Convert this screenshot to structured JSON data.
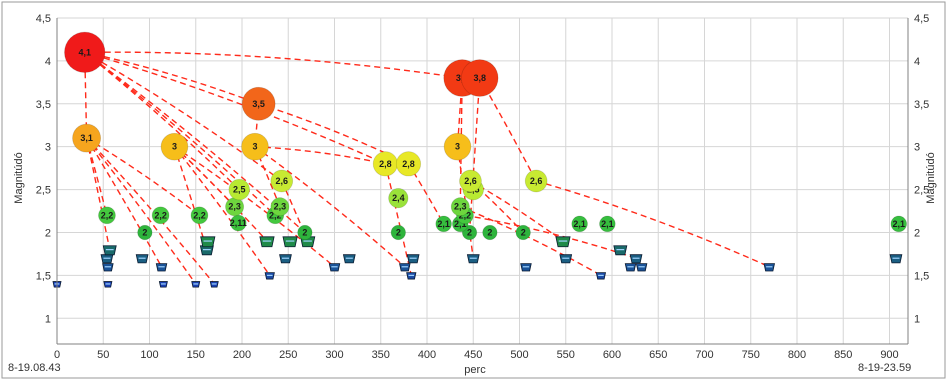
{
  "chart_data": {
    "type": "scatter",
    "title": "",
    "xlabel": "perc",
    "ylabel": "Magnitúdó",
    "ylabel_right": "Magnitúdó",
    "xlim": [
      0,
      920
    ],
    "ylim": [
      0.7,
      4.5
    ],
    "x_ticks": [
      0,
      50,
      100,
      150,
      200,
      250,
      300,
      350,
      400,
      450,
      500,
      550,
      600,
      650,
      700,
      750,
      800,
      850,
      900
    ],
    "y_ticks": [
      1,
      1.5,
      2,
      2.5,
      3,
      3.5,
      4,
      4.5
    ],
    "y_tick_labels": [
      "1",
      "1,5",
      "2",
      "2,5",
      "3",
      "3,5",
      "4",
      "4,5"
    ],
    "start_label": "8-19.08.43",
    "end_label": "8-19-23.59",
    "grid": true,
    "points": [
      {
        "x": 30,
        "y": 4.1,
        "label": "4,1",
        "color": "#f01a1a"
      },
      {
        "x": 438,
        "y": 3.8,
        "label": "3,8",
        "color": "#f23a14"
      },
      {
        "x": 457,
        "y": 3.8,
        "label": "3,8",
        "color": "#f23a14"
      },
      {
        "x": 218,
        "y": 3.5,
        "label": "3,5",
        "color": "#f2661a"
      },
      {
        "x": 32,
        "y": 3.1,
        "label": "3,1",
        "color": "#f6a51e"
      },
      {
        "x": 127,
        "y": 3.0,
        "label": "3",
        "color": "#f6be1a"
      },
      {
        "x": 214,
        "y": 3.0,
        "label": "3",
        "color": "#f6be1a"
      },
      {
        "x": 433,
        "y": 3.0,
        "label": "3",
        "color": "#f6be1a"
      },
      {
        "x": 355,
        "y": 2.8,
        "label": "2,8",
        "color": "#e8e826"
      },
      {
        "x": 380,
        "y": 2.8,
        "label": "2,8",
        "color": "#e8e826"
      },
      {
        "x": 243,
        "y": 2.6,
        "label": "2,6",
        "color": "#c8ea32"
      },
      {
        "x": 518,
        "y": 2.6,
        "label": "2,6",
        "color": "#c8ea32"
      },
      {
        "x": 197,
        "y": 2.5,
        "label": "2,5",
        "color": "#b8ea32"
      },
      {
        "x": 450,
        "y": 2.5,
        "label": "2,5",
        "color": "#b8ea32"
      },
      {
        "x": 447,
        "y": 2.6,
        "label": "2,6",
        "color": "#c8ea32"
      },
      {
        "x": 369,
        "y": 2.4,
        "label": "2,4",
        "color": "#9ae23a"
      },
      {
        "x": 192,
        "y": 2.3,
        "label": "2,3",
        "color": "#6ed63e"
      },
      {
        "x": 241,
        "y": 2.3,
        "label": "2,3",
        "color": "#6ed63e"
      },
      {
        "x": 436,
        "y": 2.3,
        "label": "2,3",
        "color": "#6ed63e"
      },
      {
        "x": 54,
        "y": 2.2,
        "label": "2,2",
        "color": "#44c83e"
      },
      {
        "x": 112,
        "y": 2.2,
        "label": "2,2",
        "color": "#44c83e"
      },
      {
        "x": 154,
        "y": 2.2,
        "label": "2,2",
        "color": "#44c83e"
      },
      {
        "x": 236,
        "y": 2.2,
        "label": "2,2",
        "color": "#44c83e"
      },
      {
        "x": 441,
        "y": 2.2,
        "label": "2,2",
        "color": "#44c83e"
      },
      {
        "x": 196,
        "y": 2.11,
        "label": "2,11",
        "color": "#3cc23c"
      },
      {
        "x": 418,
        "y": 2.1,
        "label": "2,1",
        "color": "#36be3e"
      },
      {
        "x": 436,
        "y": 2.1,
        "label": "2,1",
        "color": "#36be3e"
      },
      {
        "x": 565,
        "y": 2.1,
        "label": "2,1",
        "color": "#36be3e"
      },
      {
        "x": 595,
        "y": 2.1,
        "label": "2,1",
        "color": "#36be3e"
      },
      {
        "x": 910,
        "y": 2.1,
        "label": "2,1",
        "color": "#36be3e"
      },
      {
        "x": 95,
        "y": 2.0,
        "label": "2",
        "color": "#2eb43c"
      },
      {
        "x": 268,
        "y": 2.0,
        "label": "2",
        "color": "#2eb43c"
      },
      {
        "x": 369,
        "y": 2.0,
        "label": "2",
        "color": "#2eb43c"
      },
      {
        "x": 446,
        "y": 2.0,
        "label": "2",
        "color": "#2eb43c"
      },
      {
        "x": 468,
        "y": 2.0,
        "label": "2",
        "color": "#2eb43c"
      },
      {
        "x": 504,
        "y": 2.0,
        "label": "2",
        "color": "#2eb43c"
      },
      {
        "x": 163,
        "y": 1.9,
        "label": "",
        "color": "#1f8a48"
      },
      {
        "x": 227,
        "y": 1.9,
        "label": "",
        "color": "#1f8a48"
      },
      {
        "x": 252,
        "y": 1.9,
        "label": "",
        "color": "#1f8a48"
      },
      {
        "x": 271,
        "y": 1.9,
        "label": "",
        "color": "#1f8a48"
      },
      {
        "x": 547,
        "y": 1.9,
        "label": "",
        "color": "#1f8a48"
      },
      {
        "x": 57,
        "y": 1.8,
        "label": "",
        "color": "#1a6a6a"
      },
      {
        "x": 162,
        "y": 1.8,
        "label": "",
        "color": "#1a6a6a"
      },
      {
        "x": 609,
        "y": 1.8,
        "label": "",
        "color": "#1a6a6a"
      },
      {
        "x": 54,
        "y": 1.7,
        "label": "",
        "color": "#1a5e82"
      },
      {
        "x": 92,
        "y": 1.7,
        "label": "",
        "color": "#1a5e82"
      },
      {
        "x": 247,
        "y": 1.7,
        "label": "",
        "color": "#1a5e82"
      },
      {
        "x": 316,
        "y": 1.7,
        "label": "",
        "color": "#1a5e82"
      },
      {
        "x": 385,
        "y": 1.7,
        "label": "",
        "color": "#1a5e82"
      },
      {
        "x": 450,
        "y": 1.7,
        "label": "",
        "color": "#1a5e82"
      },
      {
        "x": 550,
        "y": 1.7,
        "label": "",
        "color": "#1a5e82"
      },
      {
        "x": 626,
        "y": 1.7,
        "label": "",
        "color": "#1a5e82"
      },
      {
        "x": 907,
        "y": 1.7,
        "label": "",
        "color": "#1a5e82"
      },
      {
        "x": 55,
        "y": 1.6,
        "label": "",
        "color": "#1a5296"
      },
      {
        "x": 113,
        "y": 1.6,
        "label": "",
        "color": "#1a5296"
      },
      {
        "x": 300,
        "y": 1.6,
        "label": "",
        "color": "#1a5296"
      },
      {
        "x": 376,
        "y": 1.6,
        "label": "",
        "color": "#1a5296"
      },
      {
        "x": 507,
        "y": 1.6,
        "label": "",
        "color": "#1a5296"
      },
      {
        "x": 620,
        "y": 1.6,
        "label": "",
        "color": "#1a5296"
      },
      {
        "x": 632,
        "y": 1.6,
        "label": "",
        "color": "#1a5296"
      },
      {
        "x": 770,
        "y": 1.6,
        "label": "",
        "color": "#1a5296"
      },
      {
        "x": 230,
        "y": 1.5,
        "label": "",
        "color": "#1a4aa4"
      },
      {
        "x": 383,
        "y": 1.5,
        "label": "",
        "color": "#1a4aa4"
      },
      {
        "x": 588,
        "y": 1.5,
        "label": "",
        "color": "#1a4aa4"
      },
      {
        "x": 0,
        "y": 1.4,
        "label": "",
        "color": "#1a40b2"
      },
      {
        "x": 55,
        "y": 1.4,
        "label": "",
        "color": "#1a40b2"
      },
      {
        "x": 115,
        "y": 1.4,
        "label": "",
        "color": "#1a40b2"
      },
      {
        "x": 150,
        "y": 1.4,
        "label": "",
        "color": "#1a40b2"
      },
      {
        "x": 170,
        "y": 1.4,
        "label": "",
        "color": "#1a40b2"
      }
    ],
    "links": [
      {
        "from": [
          30,
          4.1
        ],
        "to": [
          438,
          3.8
        ]
      },
      {
        "from": [
          30,
          4.1
        ],
        "to": [
          32,
          3.1
        ]
      },
      {
        "from": [
          30,
          4.1
        ],
        "to": [
          218,
          3.5
        ]
      },
      {
        "from": [
          30,
          4.1
        ],
        "to": [
          355,
          2.8
        ]
      },
      {
        "from": [
          30,
          4.1
        ],
        "to": [
          243,
          2.6
        ]
      },
      {
        "from": [
          30,
          4.1
        ],
        "to": [
          197,
          2.5
        ]
      },
      {
        "from": [
          30,
          4.1
        ],
        "to": [
          236,
          2.2
        ]
      },
      {
        "from": [
          30,
          4.1
        ],
        "to": [
          268,
          2.0
        ]
      },
      {
        "from": [
          32,
          3.1
        ],
        "to": [
          54,
          2.2
        ]
      },
      {
        "from": [
          32,
          3.1
        ],
        "to": [
          57,
          1.8
        ]
      },
      {
        "from": [
          32,
          3.1
        ],
        "to": [
          113,
          1.6
        ]
      },
      {
        "from": [
          32,
          3.1
        ],
        "to": [
          150,
          1.4
        ]
      },
      {
        "from": [
          32,
          3.1
        ],
        "to": [
          170,
          1.4
        ]
      },
      {
        "from": [
          32,
          3.1
        ],
        "to": [
          154,
          2.2
        ]
      },
      {
        "from": [
          127,
          3.0
        ],
        "to": [
          192,
          2.3
        ]
      },
      {
        "from": [
          127,
          3.0
        ],
        "to": [
          162,
          1.8
        ]
      },
      {
        "from": [
          127,
          3.0
        ],
        "to": [
          227,
          1.9
        ]
      },
      {
        "from": [
          127,
          3.0
        ],
        "to": [
          230,
          1.5
        ]
      },
      {
        "from": [
          127,
          3.0
        ],
        "to": [
          300,
          1.6
        ]
      },
      {
        "from": [
          218,
          3.5
        ],
        "to": [
          214,
          3.0
        ]
      },
      {
        "from": [
          218,
          3.5
        ],
        "to": [
          380,
          2.8
        ]
      },
      {
        "from": [
          214,
          3.0
        ],
        "to": [
          241,
          2.3
        ]
      },
      {
        "from": [
          214,
          3.0
        ],
        "to": [
          355,
          2.8
        ]
      },
      {
        "from": [
          214,
          3.0
        ],
        "to": [
          376,
          1.6
        ]
      },
      {
        "from": [
          243,
          2.6
        ],
        "to": [
          271,
          1.9
        ]
      },
      {
        "from": [
          355,
          2.8
        ],
        "to": [
          383,
          1.5
        ]
      },
      {
        "from": [
          380,
          2.8
        ],
        "to": [
          418,
          2.1
        ]
      },
      {
        "from": [
          438,
          3.8
        ],
        "to": [
          436,
          2.3
        ]
      },
      {
        "from": [
          438,
          3.8
        ],
        "to": [
          433,
          3.0
        ]
      },
      {
        "from": [
          457,
          3.8
        ],
        "to": [
          446,
          2.0
        ]
      },
      {
        "from": [
          457,
          3.8
        ],
        "to": [
          518,
          2.6
        ]
      },
      {
        "from": [
          433,
          3.0
        ],
        "to": [
          450,
          1.7
        ]
      },
      {
        "from": [
          447,
          2.6
        ],
        "to": [
          547,
          1.9
        ]
      },
      {
        "from": [
          447,
          2.6
        ],
        "to": [
          504,
          2.0
        ]
      },
      {
        "from": [
          518,
          2.6
        ],
        "to": [
          770,
          1.6
        ]
      },
      {
        "from": [
          436,
          2.3
        ],
        "to": [
          588,
          1.5
        ]
      },
      {
        "from": [
          441,
          2.2
        ],
        "to": [
          626,
          1.7
        ]
      }
    ]
  }
}
